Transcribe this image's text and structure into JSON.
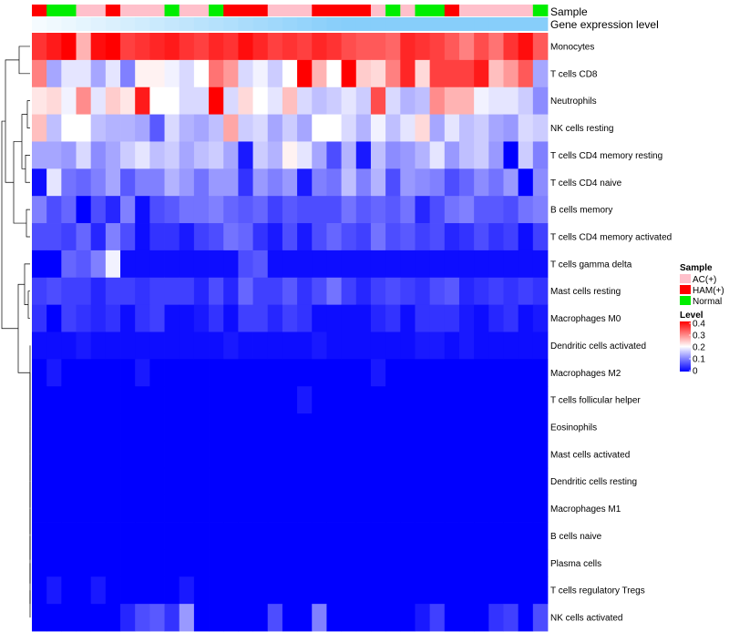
{
  "chart_data": {
    "type": "heatmap",
    "title": "",
    "annotation_labels": {
      "sample": "Sample",
      "gene": "Gene expression level"
    },
    "rows": [
      "Monocytes",
      "T cells CD8",
      "Neutrophils",
      "NK cells resting",
      "T cells CD4 memory resting",
      "T cells CD4 naive",
      "B cells memory",
      "T cells CD4 memory activated",
      "T cells gamma delta",
      "Mast cells resting",
      "Macrophages M0",
      "Dendritic cells activated",
      "Macrophages M2",
      "T cells follicular helper",
      "Eosinophils",
      "Mast cells activated",
      "Dendritic cells resting",
      "Macrophages M1",
      "B cells naive",
      "Plasma cells",
      "T cells regulatory  Tregs",
      "NK cells activated"
    ],
    "sample_groups": [
      "HAM",
      "NOR",
      "NOR",
      "AC",
      "AC",
      "HAM",
      "AC",
      "AC",
      "AC",
      "NOR",
      "AC",
      "AC",
      "NOR",
      "HAM",
      "HAM",
      "HAM",
      "AC",
      "AC",
      "AC",
      "HAM",
      "HAM",
      "HAM",
      "HAM",
      "AC",
      "NOR",
      "AC",
      "NOR",
      "NOR",
      "HAM",
      "AC",
      "AC",
      "AC",
      "AC",
      "AC",
      "NOR"
    ],
    "gene_level_range": [
      0.05,
      1.0
    ],
    "values": [
      [
        0.36,
        0.38,
        0.4,
        0.26,
        0.39,
        0.4,
        0.35,
        0.36,
        0.37,
        0.38,
        0.36,
        0.35,
        0.37,
        0.36,
        0.39,
        0.37,
        0.35,
        0.36,
        0.35,
        0.37,
        0.36,
        0.34,
        0.33,
        0.33,
        0.32,
        0.37,
        0.36,
        0.35,
        0.33,
        0.3,
        0.34,
        0.31,
        0.36,
        0.39,
        0.33
      ],
      [
        0.3,
        0.13,
        0.18,
        0.18,
        0.13,
        0.18,
        0.1,
        0.21,
        0.21,
        0.19,
        0.17,
        0.2,
        0.31,
        0.28,
        0.17,
        0.19,
        0.16,
        0.2,
        0.4,
        0.26,
        0.2,
        0.4,
        0.24,
        0.23,
        0.3,
        0.37,
        0.23,
        0.35,
        0.35,
        0.35,
        0.38,
        0.25,
        0.28,
        0.33,
        0.13
      ],
      [
        0.22,
        0.23,
        0.19,
        0.29,
        0.18,
        0.24,
        0.22,
        0.38,
        0.2,
        0.2,
        0.17,
        0.17,
        0.4,
        0.17,
        0.23,
        0.2,
        0.18,
        0.25,
        0.17,
        0.15,
        0.16,
        0.18,
        0.16,
        0.34,
        0.17,
        0.14,
        0.15,
        0.29,
        0.26,
        0.26,
        0.19,
        0.18,
        0.18,
        0.16,
        0.11
      ],
      [
        0.25,
        0.15,
        0.2,
        0.2,
        0.15,
        0.14,
        0.14,
        0.13,
        0.07,
        0.17,
        0.14,
        0.13,
        0.15,
        0.27,
        0.16,
        0.17,
        0.13,
        0.16,
        0.13,
        0.2,
        0.2,
        0.17,
        0.14,
        0.19,
        0.15,
        0.18,
        0.23,
        0.13,
        0.18,
        0.15,
        0.16,
        0.13,
        0.12,
        0.17,
        0.16
      ],
      [
        0.13,
        0.13,
        0.12,
        0.17,
        0.11,
        0.13,
        0.16,
        0.18,
        0.15,
        0.16,
        0.13,
        0.15,
        0.16,
        0.13,
        0.02,
        0.16,
        0.14,
        0.21,
        0.18,
        0.13,
        0.06,
        0.14,
        0.02,
        0.15,
        0.11,
        0.12,
        0.14,
        0.18,
        0.12,
        0.15,
        0.16,
        0.12,
        0.0,
        0.16,
        0.1
      ],
      [
        0.01,
        0.18,
        0.09,
        0.08,
        0.1,
        0.13,
        0.07,
        0.1,
        0.1,
        0.14,
        0.12,
        0.09,
        0.12,
        0.12,
        0.04,
        0.12,
        0.1,
        0.12,
        0.02,
        0.1,
        0.09,
        0.15,
        0.1,
        0.14,
        0.06,
        0.12,
        0.11,
        0.1,
        0.06,
        0.08,
        0.11,
        0.09,
        0.12,
        0.0,
        0.11
      ],
      [
        0.1,
        0.06,
        0.08,
        0.0,
        0.06,
        0.03,
        0.1,
        0.01,
        0.06,
        0.07,
        0.09,
        0.09,
        0.1,
        0.08,
        0.07,
        0.08,
        0.05,
        0.07,
        0.06,
        0.06,
        0.06,
        0.09,
        0.07,
        0.08,
        0.07,
        0.09,
        0.03,
        0.06,
        0.09,
        0.1,
        0.07,
        0.07,
        0.06,
        0.09,
        0.1
      ],
      [
        0.06,
        0.06,
        0.05,
        0.08,
        0.03,
        0.1,
        0.06,
        0.01,
        0.04,
        0.04,
        0.02,
        0.05,
        0.06,
        0.09,
        0.08,
        0.04,
        0.02,
        0.06,
        0.02,
        0.06,
        0.08,
        0.06,
        0.05,
        0.09,
        0.06,
        0.07,
        0.05,
        0.06,
        0.03,
        0.04,
        0.06,
        0.04,
        0.05,
        0.01,
        0.05
      ],
      [
        0.0,
        0.0,
        0.08,
        0.07,
        0.1,
        0.19,
        0.01,
        0.01,
        0.01,
        0.01,
        0.01,
        0.01,
        0.01,
        0.01,
        0.06,
        0.07,
        0.01,
        0.01,
        0.01,
        0.01,
        0.01,
        0.01,
        0.01,
        0.01,
        0.01,
        0.01,
        0.01,
        0.01,
        0.01,
        0.01,
        0.01,
        0.01,
        0.01,
        0.01,
        0.01
      ],
      [
        0.05,
        0.06,
        0.05,
        0.05,
        0.03,
        0.05,
        0.05,
        0.04,
        0.05,
        0.05,
        0.05,
        0.03,
        0.06,
        0.03,
        0.08,
        0.05,
        0.05,
        0.07,
        0.04,
        0.06,
        0.09,
        0.05,
        0.03,
        0.05,
        0.06,
        0.05,
        0.04,
        0.06,
        0.07,
        0.03,
        0.04,
        0.05,
        0.04,
        0.05,
        0.04
      ],
      [
        0.04,
        0.0,
        0.05,
        0.04,
        0.03,
        0.04,
        0.01,
        0.04,
        0.05,
        0.01,
        0.01,
        0.02,
        0.04,
        0.01,
        0.05,
        0.05,
        0.03,
        0.05,
        0.04,
        0.01,
        0.01,
        0.01,
        0.01,
        0.03,
        0.04,
        0.01,
        0.04,
        0.04,
        0.04,
        0.02,
        0.01,
        0.03,
        0.04,
        0.01,
        0.02
      ],
      [
        0.01,
        0.01,
        0.01,
        0.02,
        0.01,
        0.01,
        0.01,
        0.01,
        0.01,
        0.01,
        0.01,
        0.01,
        0.01,
        0.02,
        0.01,
        0.01,
        0.01,
        0.01,
        0.01,
        0.02,
        0.01,
        0.01,
        0.01,
        0.01,
        0.01,
        0.01,
        0.02,
        0.02,
        0.01,
        0.02,
        0.01,
        0.01,
        0.01,
        0.01,
        0.01
      ],
      [
        0.0,
        0.02,
        0.0,
        0.0,
        0.0,
        0.0,
        0.0,
        0.02,
        0.0,
        0.0,
        0.0,
        0.0,
        0.0,
        0.0,
        0.0,
        0.0,
        0.0,
        0.0,
        0.0,
        0.0,
        0.0,
        0.0,
        0.0,
        0.02,
        0.0,
        0.0,
        0.0,
        0.0,
        0.0,
        0.0,
        0.0,
        0.0,
        0.0,
        0.0,
        0.0
      ],
      [
        0.0,
        0.0,
        0.0,
        0.0,
        0.0,
        0.0,
        0.0,
        0.0,
        0.0,
        0.0,
        0.0,
        0.0,
        0.0,
        0.0,
        0.0,
        0.0,
        0.0,
        0.0,
        0.02,
        0.0,
        0.0,
        0.0,
        0.0,
        0.0,
        0.0,
        0.0,
        0.0,
        0.0,
        0.0,
        0.0,
        0.0,
        0.0,
        0.0,
        0.0,
        0.0
      ],
      [
        0.0,
        0.0,
        0.0,
        0.0,
        0.0,
        0.0,
        0.0,
        0.0,
        0.0,
        0.0,
        0.0,
        0.0,
        0.0,
        0.0,
        0.0,
        0.0,
        0.0,
        0.0,
        0.0,
        0.0,
        0.0,
        0.0,
        0.0,
        0.0,
        0.0,
        0.0,
        0.0,
        0.0,
        0.0,
        0.0,
        0.0,
        0.0,
        0.0,
        0.0,
        0.0
      ],
      [
        0.0,
        0.0,
        0.0,
        0.0,
        0.0,
        0.0,
        0.0,
        0.0,
        0.0,
        0.0,
        0.0,
        0.0,
        0.0,
        0.0,
        0.0,
        0.0,
        0.0,
        0.0,
        0.0,
        0.0,
        0.0,
        0.0,
        0.0,
        0.0,
        0.0,
        0.0,
        0.0,
        0.0,
        0.0,
        0.0,
        0.0,
        0.0,
        0.0,
        0.0,
        0.0
      ],
      [
        0.0,
        0.0,
        0.0,
        0.0,
        0.0,
        0.0,
        0.0,
        0.0,
        0.0,
        0.0,
        0.0,
        0.0,
        0.0,
        0.0,
        0.0,
        0.0,
        0.0,
        0.0,
        0.0,
        0.0,
        0.0,
        0.0,
        0.0,
        0.0,
        0.0,
        0.0,
        0.0,
        0.0,
        0.0,
        0.0,
        0.0,
        0.0,
        0.0,
        0.0,
        0.0
      ],
      [
        0.0,
        0.0,
        0.0,
        0.0,
        0.0,
        0.0,
        0.0,
        0.0,
        0.0,
        0.0,
        0.0,
        0.0,
        0.0,
        0.0,
        0.0,
        0.0,
        0.0,
        0.0,
        0.0,
        0.0,
        0.0,
        0.0,
        0.0,
        0.0,
        0.0,
        0.0,
        0.0,
        0.0,
        0.0,
        0.0,
        0.0,
        0.0,
        0.0,
        0.0,
        0.0
      ],
      [
        0.0,
        0.0,
        0.0,
        0.0,
        0.0,
        0.0,
        0.0,
        0.0,
        0.0,
        0.0,
        0.0,
        0.0,
        0.0,
        0.0,
        0.0,
        0.0,
        0.0,
        0.0,
        0.0,
        0.0,
        0.0,
        0.0,
        0.0,
        0.0,
        0.0,
        0.0,
        0.0,
        0.0,
        0.0,
        0.0,
        0.0,
        0.0,
        0.0,
        0.0,
        0.0
      ],
      [
        0.0,
        0.0,
        0.0,
        0.0,
        0.0,
        0.0,
        0.0,
        0.0,
        0.0,
        0.0,
        0.0,
        0.0,
        0.0,
        0.0,
        0.0,
        0.0,
        0.0,
        0.0,
        0.0,
        0.0,
        0.0,
        0.0,
        0.0,
        0.0,
        0.0,
        0.0,
        0.0,
        0.0,
        0.0,
        0.0,
        0.0,
        0.0,
        0.0,
        0.0,
        0.0
      ],
      [
        0.0,
        0.02,
        0.0,
        0.0,
        0.02,
        0.0,
        0.0,
        0.0,
        0.0,
        0.0,
        0.02,
        0.0,
        0.0,
        0.0,
        0.0,
        0.0,
        0.0,
        0.0,
        0.0,
        0.0,
        0.0,
        0.0,
        0.0,
        0.0,
        0.0,
        0.0,
        0.0,
        0.0,
        0.0,
        0.0,
        0.0,
        0.0,
        0.0,
        0.0,
        0.0
      ],
      [
        0.0,
        0.0,
        0.0,
        0.0,
        0.0,
        0.0,
        0.03,
        0.06,
        0.07,
        0.04,
        0.12,
        0.0,
        0.0,
        0.0,
        0.0,
        0.0,
        0.06,
        0.0,
        0.0,
        0.1,
        0.0,
        0.0,
        0.0,
        0.0,
        0.0,
        0.0,
        0.02,
        0.05,
        0.0,
        0.0,
        0.0,
        0.04,
        0.05,
        0.0,
        0.06
      ]
    ],
    "legend": {
      "sample_title": "Sample",
      "sample_entries": [
        {
          "key": "AC",
          "label": "AC(+)",
          "color": "#ffc0cb"
        },
        {
          "key": "HAM",
          "label": "HAM(+)",
          "color": "#ff0000"
        },
        {
          "key": "NOR",
          "label": "Normal",
          "color": "#00ee00"
        }
      ],
      "level_title": "Level",
      "level_ticks": [
        "0.4",
        "0.3",
        "0.2",
        "0.1",
        "0"
      ],
      "level_range": [
        0,
        0.4
      ]
    },
    "colors": {
      "low": "#0000ff",
      "mid": "#ffffff",
      "high": "#ff0000",
      "gene_low": "#ffffff",
      "gene_high": "#87cefa"
    },
    "row_dendrogram": true
  }
}
